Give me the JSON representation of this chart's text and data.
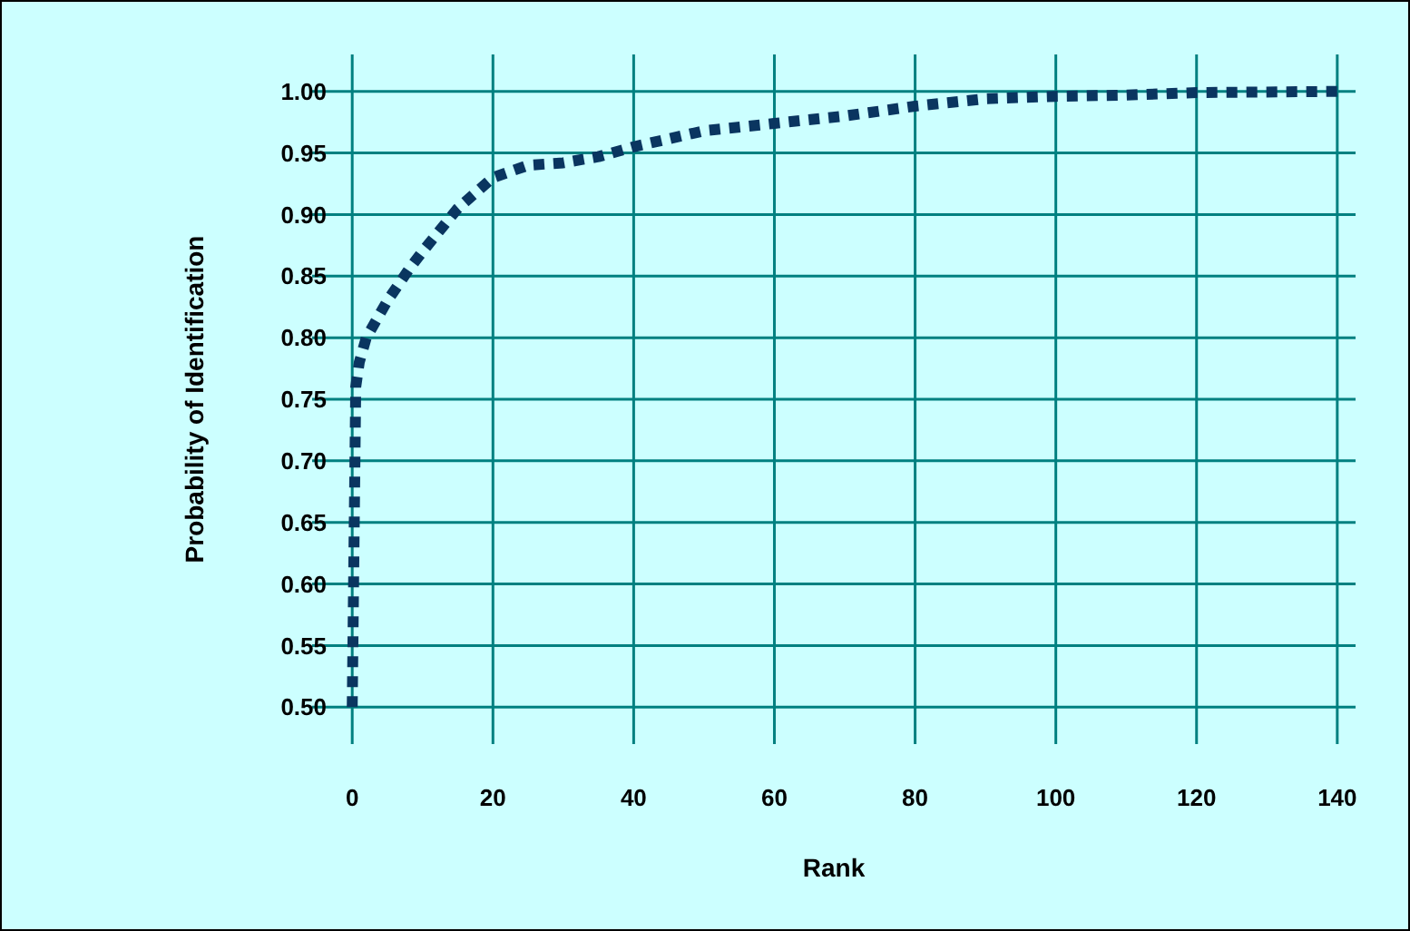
{
  "chart_data": {
    "type": "line",
    "xlabel": "Rank",
    "ylabel": "Probability of Identification",
    "xlim": [
      -5.7,
      142.6
    ],
    "ylim": [
      0.47,
      1.03
    ],
    "xticks": [
      0,
      20,
      40,
      60,
      80,
      100,
      120,
      140
    ],
    "yticks": [
      {
        "value": 0.5,
        "label": "0.50"
      },
      {
        "value": 0.55,
        "label": "0.55"
      },
      {
        "value": 0.6,
        "label": "0.60"
      },
      {
        "value": 0.65,
        "label": "0.65"
      },
      {
        "value": 0.7,
        "label": "0.70"
      },
      {
        "value": 0.75,
        "label": "0.75"
      },
      {
        "value": 0.8,
        "label": "0.80"
      },
      {
        "value": 0.85,
        "label": "0.85"
      },
      {
        "value": 0.9,
        "label": "0.90"
      },
      {
        "value": 0.95,
        "label": "0.95"
      },
      {
        "value": 1,
        "label": "1.00"
      }
    ],
    "grid": true,
    "line_style": "dotted",
    "marker": "none",
    "series": [
      {
        "color": "#0a3560",
        "x": [
          0,
          0.5,
          1,
          2,
          5,
          8,
          10,
          15,
          20,
          25,
          30,
          35,
          40,
          50,
          60,
          70,
          80,
          90,
          100,
          110,
          120,
          140
        ],
        "values": [
          0.5,
          0.76,
          0.78,
          0.8,
          0.83,
          0.855,
          0.87,
          0.905,
          0.93,
          0.94,
          0.942,
          0.947,
          0.955,
          0.968,
          0.974,
          0.98,
          0.988,
          0.994,
          0.996,
          0.997,
          0.999,
          1.0
        ]
      }
    ]
  }
}
